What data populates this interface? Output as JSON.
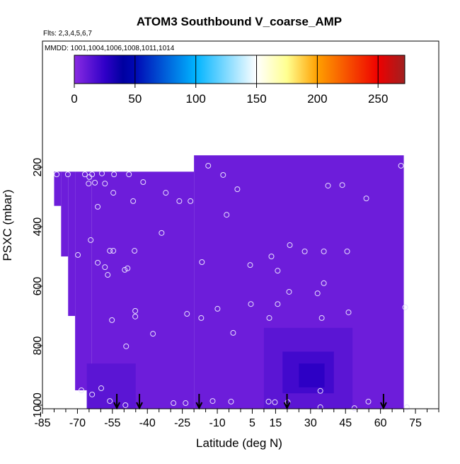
{
  "chart_data": {
    "type": "heatmap",
    "title": "ATOM3 Southbound V_coarse_AMP",
    "subtitle": "Flts: 2,3,4,5,6,7",
    "annotation": "MMDD: 1001,1004,1006,1008,1011,1014",
    "x_label": "Latitude (deg N)",
    "y_label": "PSXC (mbar)",
    "xlim": [
      -85,
      85
    ],
    "xticks": [
      -85,
      -70,
      -55,
      -40,
      -25,
      -10,
      5,
      15,
      30,
      45,
      60,
      75
    ],
    "xminorticks": [
      -80,
      -75,
      -65,
      -60,
      -50,
      -45,
      -35,
      -30,
      -20,
      -15,
      -5,
      0,
      10,
      20,
      25,
      35,
      40,
      50,
      55,
      65,
      70,
      80,
      85
    ],
    "ylim": [
      1012,
      -224
    ],
    "yticks": [
      200,
      400,
      600,
      800,
      1000
    ],
    "clim": [
      0,
      272
    ],
    "cticks": [
      0,
      50,
      100,
      150,
      200,
      250
    ],
    "colorscale": [
      [
        0,
        "#8a2be2"
      ],
      [
        25,
        "#3000c8"
      ],
      [
        40,
        "#0000a0"
      ],
      [
        50,
        "#0008b4"
      ],
      [
        100,
        "#00b4ff"
      ],
      [
        150,
        "#ffffff"
      ],
      [
        175,
        "#ffff90"
      ],
      [
        200,
        "#ffa000"
      ],
      [
        250,
        "#ee0000"
      ],
      [
        272,
        "#a02020"
      ]
    ],
    "cells": [
      [
        -80,
        -77,
        215,
        330,
        8
      ],
      [
        -77,
        -74,
        215,
        500,
        8
      ],
      [
        -74,
        -71,
        215,
        700,
        8
      ],
      [
        -71,
        -64,
        215,
        950,
        8
      ],
      [
        -64,
        -20,
        215,
        1012,
        8
      ],
      [
        -20,
        70,
        160,
        1012,
        8
      ],
      [
        -66,
        -45,
        860,
        1012,
        13
      ],
      [
        10,
        48,
        740,
        1012,
        13
      ],
      [
        18,
        40,
        820,
        960,
        20
      ],
      [
        25,
        36,
        860,
        940,
        26
      ]
    ],
    "points": {
      "lat": [
        -78.9,
        -74.1,
        -66.8,
        -64.9,
        -63.7,
        -59.5,
        -54.3,
        -47.9,
        -65.2,
        -62.5,
        -58.2,
        -54.6,
        -41.8,
        -46.1,
        -32.1,
        -26.3,
        -21.5,
        -61.3,
        -13.9,
        -7.5,
        -1.4,
        -6.0,
        -33.9,
        -64.3,
        -56.1,
        -54.6,
        -45.5,
        -69.8,
        -61.3,
        -58.2,
        -49.7,
        -48.5,
        -57.0,
        -16.6,
        4.1,
        13.2,
        15.9,
        21.1,
        27.5,
        35.7,
        43.6,
        37.5,
        45.7,
        53.9,
        68.8,
        35.7,
        20.8,
        33.0,
        -45.2,
        -45.2,
        -55.2,
        -23.0,
        -16.9,
        -9.9,
        4.4,
        15.9,
        12.3,
        34.8,
        46.3,
        70.6,
        -37.6,
        -3.2,
        -49.1,
        -68.3,
        -59.8,
        -56.1,
        -63.7,
        -49.4,
        -28.8,
        -23.6,
        -12.0,
        -4.1,
        12.0,
        14.7,
        20.2,
        34.2,
        34.2,
        48.8,
        54.8,
        71.3
      ],
      "p": [
        224,
        224,
        224,
        233,
        224,
        221,
        224,
        224,
        255,
        252,
        255,
        286,
        250,
        314,
        286,
        314,
        314,
        333,
        195,
        226,
        274,
        360,
        421,
        445,
        481,
        481,
        481,
        495,
        521,
        536,
        545,
        540,
        562,
        519,
        529,
        500,
        548,
        462,
        483,
        483,
        260,
        262,
        483,
        305,
        195,
        590,
        619,
        624,
        683,
        702,
        714,
        693,
        707,
        676,
        660,
        660,
        707,
        707,
        688,
        671,
        760,
        757,
        802,
        950,
        943,
        986,
        964,
        1000,
        993,
        993,
        986,
        988,
        988,
        990,
        990,
        952,
        1007,
        1010,
        988,
        1007
      ]
    },
    "arrows": [
      -53.1,
      -43.4,
      -17.8,
      19.9,
      61.3
    ]
  }
}
